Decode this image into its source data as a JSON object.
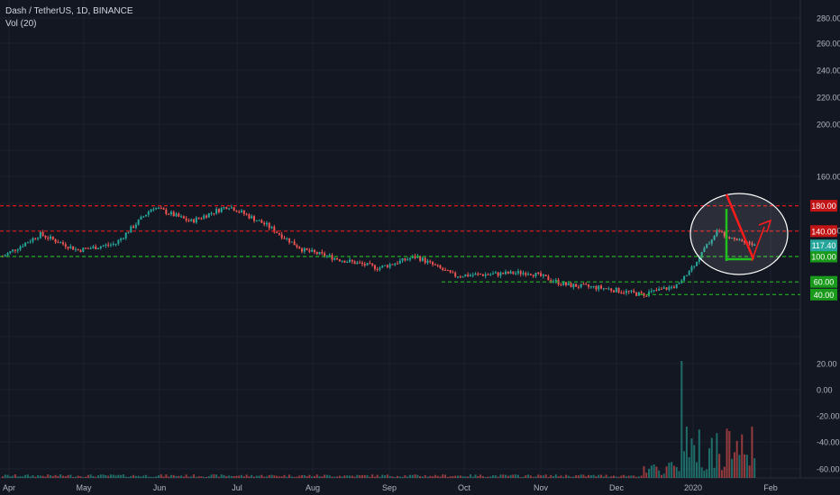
{
  "symbol_line": "Dash / TetherUS, 1D, BINANCE",
  "indicator_line": "Vol (20)",
  "colors": {
    "background": "#131722",
    "grid": "#1e222d",
    "text": "#b2b5be",
    "up": "#26a69a",
    "down": "#ef5350",
    "drawing_red": "#ff1a1a",
    "drawing_green": "#1fbf1f",
    "resistance": "#e01818",
    "support": "#22b022",
    "current_price_bg": "#26a69a"
  },
  "chart_data": {
    "type": "candlestick",
    "title": "Dash / TetherUS, 1D, BINANCE",
    "x_ticks": [
      "Apr",
      "May",
      "Jun",
      "Jul",
      "Aug",
      "Sep",
      "Oct",
      "Nov",
      "Dec",
      "2020",
      "Feb"
    ],
    "y_ticks": [
      "280.00",
      "260.00",
      "240.00",
      "220.00",
      "200.00",
      "160.00",
      "120.00",
      "80.00",
      "20.00",
      "0.00",
      "-20.00",
      "-40.00",
      "-60.00"
    ],
    "ylim": [
      -60,
      280
    ],
    "grid": true,
    "approximate_close_series": [
      {
        "date": "Apr",
        "close": 100
      },
      {
        "date": "Apr mid",
        "close": 135
      },
      {
        "date": "May",
        "close": 110
      },
      {
        "date": "May mid",
        "close": 120
      },
      {
        "date": "Jun",
        "close": 178
      },
      {
        "date": "Jun mid",
        "close": 155
      },
      {
        "date": "Jul",
        "close": 180
      },
      {
        "date": "Jul mid",
        "close": 150
      },
      {
        "date": "Aug",
        "close": 110
      },
      {
        "date": "Aug mid",
        "close": 95
      },
      {
        "date": "Sep",
        "close": 82
      },
      {
        "date": "Sep mid",
        "close": 100
      },
      {
        "date": "Oct",
        "close": 70
      },
      {
        "date": "Oct mid",
        "close": 72
      },
      {
        "date": "Nov",
        "close": 75
      },
      {
        "date": "Nov mid",
        "close": 55
      },
      {
        "date": "Dec",
        "close": 50
      },
      {
        "date": "Dec mid",
        "close": 40
      },
      {
        "date": "2020",
        "close": 55
      },
      {
        "date": "Jan mid",
        "close": 140
      },
      {
        "date": "Jan late",
        "close": 117.4
      }
    ],
    "horizontal_levels": [
      {
        "value": 180,
        "label": "180.00",
        "style": "resistance"
      },
      {
        "value": 140,
        "label": "140.00",
        "style": "resistance"
      },
      {
        "value": 100,
        "label": "100.00",
        "style": "support"
      },
      {
        "value": 60,
        "label": "60.00",
        "style": "support"
      },
      {
        "value": 40,
        "label": "40.00",
        "style": "support"
      }
    ],
    "current_price": {
      "value": 117.4,
      "label": "117.40"
    },
    "volume_label": "Vol (20)"
  }
}
